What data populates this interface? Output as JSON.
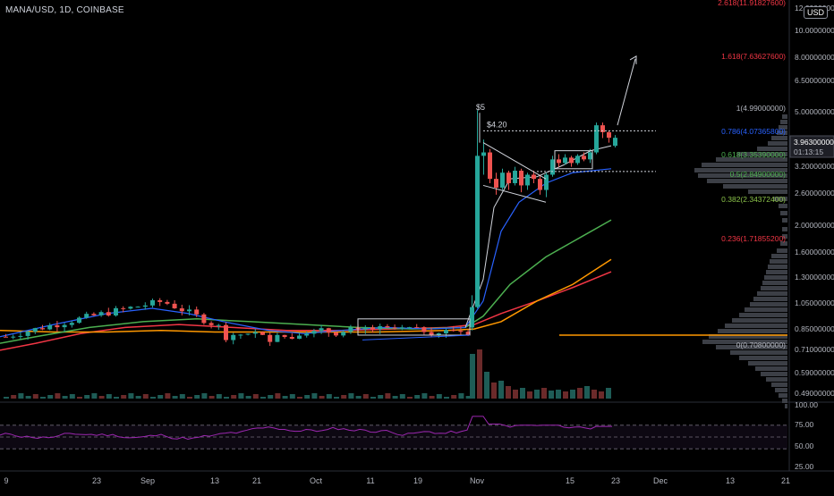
{
  "symbol": "MANA/USD, 1D, COINBASE",
  "currency_badge": "USD",
  "price_axis": {
    "ticks": [
      "12.00000000",
      "10.00000000",
      "8.00000000",
      "6.50000000",
      "5.00000000",
      "4.00000000",
      "3.20000000",
      "2.60000000",
      "2.00000000",
      "1.60000000",
      "1.30000000",
      "1.05000000",
      "0.85000000",
      "0.71000000",
      "0.59000000",
      "0.49000000"
    ],
    "current_price": "3.96300000",
    "countdown": "01:13:15"
  },
  "fib_levels": [
    {
      "label": "2.618(11.91827600)",
      "color": "#f23645"
    },
    {
      "label": "1.618(7.63627600)",
      "color": "#f23645"
    },
    {
      "label": "1(4.99000000)",
      "color": "#b2b5be"
    },
    {
      "label": "0.786(4.07365800)",
      "color": "#2962ff"
    },
    {
      "label": "0.618(3.35390000)",
      "color": "#4caf50"
    },
    {
      "label": "0.5(2.84900000)",
      "color": "#4caf50"
    },
    {
      "label": "0.382(2.34372400)",
      "color": "#8bc34a"
    },
    {
      "label": "0.236(1.71855200)",
      "color": "#f23645"
    },
    {
      "label": "0(0.70800000)",
      "color": "#b2b5be"
    }
  ],
  "annotations": {
    "peak_label": "$5",
    "box_label": "$4.20"
  },
  "rsi_axis": {
    "ticks": [
      "100.00",
      "75.00",
      "50.00",
      "25.00"
    ]
  },
  "time_axis": {
    "ticks": [
      "9",
      "23",
      "Sep",
      "13",
      "21",
      "Oct",
      "11",
      "19",
      "Nov",
      "15",
      "23",
      "Dec",
      "13",
      "21"
    ]
  },
  "colors": {
    "up": "#26a69a",
    "down": "#ef5350",
    "ema_blue": "#2962ff",
    "ema_green": "#4caf50",
    "ema_orange": "#ff9800",
    "ema_red": "#f23645",
    "rsi": "#9c27b0"
  },
  "chart_data": {
    "type": "candlestick",
    "title": "MANA/USD, 1D, COINBASE",
    "y_scale": "log",
    "series": [
      {
        "name": "MANA/USD",
        "close": [
          0.74,
          0.76,
          0.79,
          0.81,
          0.82,
          0.86,
          0.9,
          0.95,
          1.0,
          0.97,
          0.92,
          0.84,
          0.79,
          0.76,
          0.8,
          0.78,
          0.77,
          0.77,
          0.75,
          0.69,
          0.71,
          0.75,
          0.76,
          0.78,
          0.77,
          0.78,
          0.76,
          0.78,
          0.8,
          0.79,
          0.78,
          0.8,
          0.85,
          3.4,
          3.5,
          2.8,
          2.6,
          2.95,
          2.7,
          3.0,
          2.65,
          2.9,
          3.2,
          3.35,
          3.3,
          3.2,
          3.4,
          4.4,
          4.15,
          3.96
        ]
      }
    ],
    "annotations": [
      "$5",
      "$4.20"
    ]
  }
}
